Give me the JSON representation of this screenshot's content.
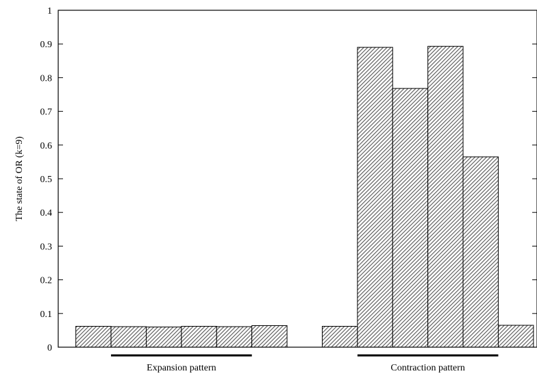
{
  "chart_data": {
    "type": "bar",
    "ylabel": "The state of OR (k=9)",
    "ylim": [
      0,
      1
    ],
    "yticks": [
      "0",
      "0.1",
      "0.2",
      "0.3",
      "0.4",
      "0.5",
      "0.6",
      "0.7",
      "0.8",
      "0.9",
      "1"
    ],
    "xlim": [
      0,
      13.6
    ],
    "bars": [
      {
        "x": 1,
        "value": 0.062
      },
      {
        "x": 2,
        "value": 0.061
      },
      {
        "x": 3,
        "value": 0.06
      },
      {
        "x": 4,
        "value": 0.062
      },
      {
        "x": 5,
        "value": 0.061
      },
      {
        "x": 6,
        "value": 0.064
      },
      {
        "x": 8,
        "value": 0.062
      },
      {
        "x": 9,
        "value": 0.89
      },
      {
        "x": 10,
        "value": 0.768
      },
      {
        "x": 11,
        "value": 0.893
      },
      {
        "x": 12,
        "value": 0.565
      },
      {
        "x": 13,
        "value": 0.065
      }
    ],
    "groups": [
      {
        "label": "Expansion pattern",
        "start": 2,
        "end": 5
      },
      {
        "label": "Contraction pattern",
        "start": 9,
        "end": 12
      }
    ],
    "grid": false,
    "bar_fill": "diagonal-hatch"
  }
}
